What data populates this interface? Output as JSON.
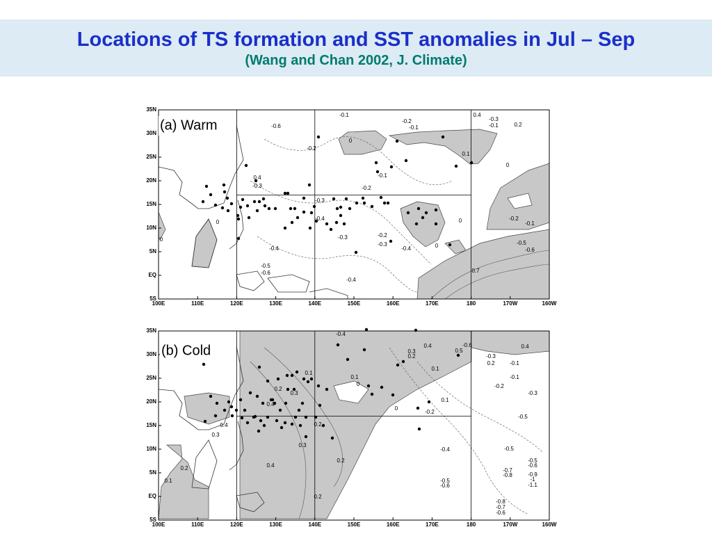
{
  "header": {
    "title": "Locations of TS formation and SST anomalies in Jul – Sep",
    "subtitle": "(Wang and Chan 2002, J. Climate)"
  },
  "axes": {
    "lat_ticks": [
      "35N",
      "30N",
      "25N",
      "20N",
      "15N",
      "10N",
      "5N",
      "EQ",
      "5S"
    ],
    "lon_ticks": [
      "100E",
      "110E",
      "120E",
      "130E",
      "140E",
      "150E",
      "160E",
      "170E",
      "180",
      "170W",
      "160W"
    ]
  },
  "panels": [
    {
      "label": "(a) Warm",
      "contour_labels": [
        "-0.1",
        "-0.2",
        "-0.1",
        "0.4",
        "-0.3",
        "-0.1",
        "0.2",
        "-0.2",
        "-0.6",
        "0",
        "0.1",
        "0",
        "-0.1",
        "-0.2",
        "0.4",
        "-0.3",
        "-0.3",
        "-0.4",
        "-0.3",
        "-0.2",
        "-0.3",
        "-0.4",
        "0",
        "0",
        "-0.2",
        "-0.1",
        "-0.5",
        "-0.6",
        "0.7",
        "-0.4",
        "-0.5",
        "-0.6",
        "-0.4",
        "0",
        "0"
      ]
    },
    {
      "label": "(b) Cold",
      "contour_labels": [
        "-0.4",
        "0.4",
        "-0.6",
        "0.5",
        "0.4",
        "0.3",
        "0.2",
        "-0.3",
        "0.2",
        "-0.1",
        "0.1",
        "-0.1",
        "0.1",
        "0",
        "0.1",
        "-0.2",
        "-0.3",
        "0.3",
        "0.2",
        "0.4",
        "0.1",
        "-0.2",
        "0",
        "-0.5",
        "0.2",
        "0.3",
        "0.4",
        "0.3",
        "-0.4",
        "-0.5",
        "0.2",
        "0.2",
        "0.4",
        "-0.5",
        "-0.6",
        "-0.7",
        "-0.8",
        "-0.9",
        "-1",
        "-1.1",
        "0.1",
        "-0.5",
        "-0.6",
        "0.2",
        "-0.8",
        "-0.7",
        "-0.6"
      ]
    }
  ]
}
